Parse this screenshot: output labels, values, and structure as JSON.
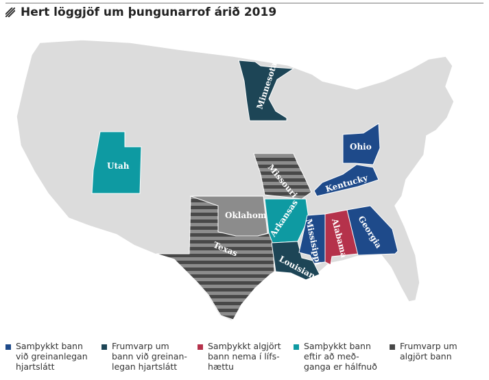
{
  "title": "Hert löggjöf um þungunarrof árið 2019",
  "colors": {
    "state_gray": "#dcdcdc",
    "blue": "#1e4a8a",
    "dark_teal": "#1d4556",
    "red": "#b5324b",
    "teal": "#0e9aa2",
    "dark_gray": "#484848",
    "stripe_gray": "#8c8c8c",
    "border": "#ffffff"
  },
  "states": [
    {
      "name": "Minnesota",
      "category": "fetal_heartbeat_bill"
    },
    {
      "name": "Utah",
      "category": "ban_after_midpoint"
    },
    {
      "name": "Missouri",
      "category": "near_total_bill"
    },
    {
      "name": "Oklahoma",
      "category": "near_total_bill"
    },
    {
      "name": "Arkansas",
      "category": "ban_after_midpoint"
    },
    {
      "name": "Texas",
      "category": "near_total_bill"
    },
    {
      "name": "Louisiana",
      "category": "fetal_heartbeat_bill"
    },
    {
      "name": "Missisippi",
      "category": "fetal_heartbeat_ban"
    },
    {
      "name": "Alabama",
      "category": "near_total_ban"
    },
    {
      "name": "Georgia",
      "category": "fetal_heartbeat_ban"
    },
    {
      "name": "Kentucky",
      "category": "fetal_heartbeat_ban"
    },
    {
      "name": "Ohio",
      "category": "fetal_heartbeat_ban"
    }
  ],
  "legend": [
    {
      "label": "Samþykkt bann\nvið greinanlegan\nhjartslátt",
      "color": "#1e4a8a"
    },
    {
      "label": "Frumvarp um\nbann við greinan-\nlegan hjartslátt",
      "color": "#1d4556"
    },
    {
      "label": "Samþykkt algjört\nbann nema í lífs-\nhættu",
      "color": "#b5324b"
    },
    {
      "label": "Samþykkt bann\neftir að með-\nganga er hálfnuð",
      "color": "#0e9aa2"
    },
    {
      "label": "Frumvarp um\nalgjört bann",
      "color": "#484848"
    }
  ]
}
